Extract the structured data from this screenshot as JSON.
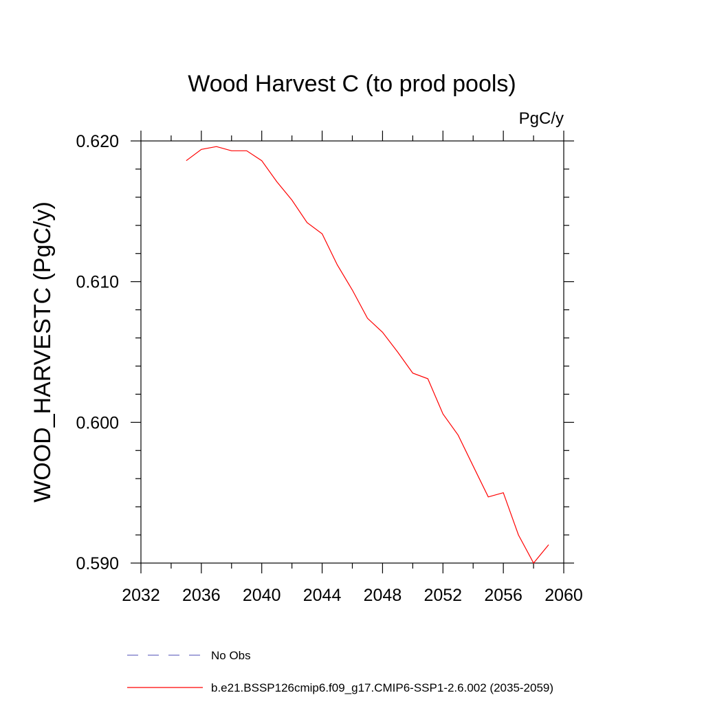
{
  "chart_data": {
    "type": "line",
    "title": "Wood Harvest C (to prod pools)",
    "units": "PgC/y",
    "ylabel": "WOOD_HARVESTC  (PgC/y)",
    "xlabel": "",
    "xlim": [
      2032,
      2060
    ],
    "ylim": [
      0.59,
      0.62
    ],
    "x_ticks": [
      2032,
      2036,
      2040,
      2044,
      2048,
      2052,
      2056,
      2060
    ],
    "x_tick_labels": [
      "2032",
      "2036",
      "2040",
      "2044",
      "2048",
      "2052",
      "2056",
      "2060"
    ],
    "y_ticks": [
      0.59,
      0.6,
      0.61,
      0.62
    ],
    "y_tick_labels": [
      "0.590",
      "0.600",
      "0.610",
      "0.620"
    ],
    "grid": false,
    "legend_position": "bottom",
    "series": [
      {
        "name": "b.e21.BSSP126cmip6.f09_g17.CMIP6-SSP1-2.6.002 (2035-2059)",
        "color": "#ff0000",
        "style": "solid",
        "x": [
          2035,
          2036,
          2037,
          2038,
          2039,
          2040,
          2041,
          2042,
          2043,
          2044,
          2045,
          2046,
          2047,
          2048,
          2049,
          2050,
          2051,
          2052,
          2053,
          2054,
          2055,
          2056,
          2057,
          2058,
          2059
        ],
        "y": [
          0.6186,
          0.6194,
          0.6196,
          0.6193,
          0.6193,
          0.6186,
          0.6171,
          0.6158,
          0.6142,
          0.6134,
          0.6112,
          0.6094,
          0.6074,
          0.6064,
          0.605,
          0.6035,
          0.6031,
          0.6006,
          0.5991,
          0.5969,
          0.5947,
          0.595,
          0.592,
          0.59,
          0.5913
        ]
      }
    ],
    "legend": [
      {
        "label": "No Obs",
        "color": "#6f6fc4",
        "style": "dashed"
      },
      {
        "label": "b.e21.BSSP126cmip6.f09_g17.CMIP6-SSP1-2.6.002 (2035-2059)",
        "color": "#ff0000",
        "style": "solid"
      }
    ]
  }
}
